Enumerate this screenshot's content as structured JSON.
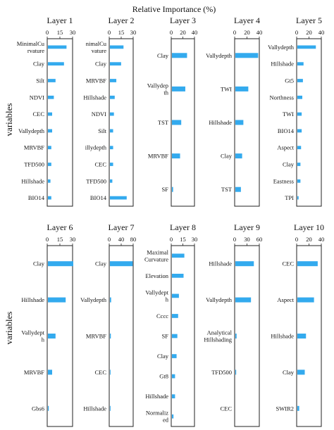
{
  "figure": {
    "title": "Relative Importance (%)",
    "ylabel": "variables"
  },
  "chart_data": [
    {
      "type": "bar",
      "orientation": "horizontal",
      "title": "Layer 1",
      "xlim": [
        0,
        30
      ],
      "xticks": [
        0,
        15,
        30
      ],
      "categories": [
        "MinimalCu rvature",
        "Clay",
        "Silt",
        "NDVI",
        "CEC",
        "Vallydepth",
        "MRVBF",
        "TFD500",
        "Hillshade",
        "BIO14"
      ],
      "values": [
        22,
        19,
        9,
        7,
        5,
        5,
        4,
        4,
        3,
        4
      ]
    },
    {
      "type": "bar",
      "orientation": "horizontal",
      "title": "Layer 2",
      "xlim": [
        0,
        30
      ],
      "xticks": [
        0,
        15,
        30
      ],
      "categories": [
        "nimalCu vature",
        "Clay",
        "MRVBF",
        "Hillshade",
        "NDVI",
        "Silt",
        "illydepth",
        "CEC",
        "TFD500",
        "BIO14"
      ],
      "values": [
        17,
        14,
        8,
        6,
        5,
        4,
        4,
        4,
        3,
        21
      ]
    },
    {
      "type": "bar",
      "orientation": "horizontal",
      "title": "Layer 3",
      "xlim": [
        0,
        40
      ],
      "xticks": [
        0,
        20,
        40
      ],
      "categories": [
        "Clay",
        "Vallydep th",
        "TST",
        "MRVBF",
        "SF"
      ],
      "values": [
        26,
        23,
        16,
        14,
        2
      ]
    },
    {
      "type": "bar",
      "orientation": "horizontal",
      "title": "Layer 4",
      "xlim": [
        0,
        40
      ],
      "xticks": [
        0,
        20,
        40
      ],
      "categories": [
        "Vallydepth",
        "TWI",
        "Hillshade",
        "Clay",
        "TST"
      ],
      "values": [
        37,
        21,
        13,
        11,
        9
      ]
    },
    {
      "type": "bar",
      "orientation": "horizontal",
      "title": "Layer 5",
      "xlim": [
        0,
        40
      ],
      "xticks": [
        0,
        20,
        40
      ],
      "categories": [
        "Vallydepth",
        "Hillshade",
        "Gt5",
        "Northness",
        "TWI",
        "BIO14",
        "Aspect",
        "Clay",
        "Eastness",
        "TPI"
      ],
      "values": [
        30,
        10,
        9,
        8,
        7,
        7,
        6,
        5,
        5,
        2
      ]
    },
    {
      "type": "bar",
      "orientation": "horizontal",
      "title": "Layer 6",
      "xlim": [
        0,
        30
      ],
      "xticks": [
        0,
        15,
        30
      ],
      "categories": [
        "Clay",
        "Hillshade",
        "Vallydept h",
        "MRVBF",
        "Gbs6"
      ],
      "values": [
        30,
        21,
        9,
        5,
        1
      ]
    },
    {
      "type": "bar",
      "orientation": "horizontal",
      "title": "Layer 7",
      "xlim": [
        0,
        80
      ],
      "xticks": [
        0,
        40,
        80
      ],
      "categories": [
        "Clay",
        "Vallydepth",
        "MRVBF",
        "CEC",
        "Hillshade"
      ],
      "values": [
        76,
        4,
        3,
        2,
        2
      ]
    },
    {
      "type": "bar",
      "orientation": "horizontal",
      "title": "Layer 8",
      "xlim": [
        0,
        30
      ],
      "xticks": [
        0,
        15,
        30
      ],
      "categories": [
        "Maximal Curvature",
        "Elevation",
        "Vallydept h",
        "Cccc",
        "SF",
        "Clay",
        "Gt8",
        "Hillshade",
        "Normaliz ed"
      ],
      "values": [
        16,
        15,
        9,
        8,
        7,
        6,
        4,
        4,
        2
      ]
    },
    {
      "type": "bar",
      "orientation": "horizontal",
      "title": "Layer 9",
      "xlim": [
        0,
        60
      ],
      "xticks": [
        0,
        30,
        60
      ],
      "categories": [
        "Hillshade",
        "Vallydepth",
        "Analytical Hillshading",
        "TFD500",
        "CEC"
      ],
      "values": [
        45,
        38,
        3,
        2,
        0
      ]
    },
    {
      "type": "bar",
      "orientation": "horizontal",
      "title": "Layer 10",
      "xlim": [
        0,
        40
      ],
      "xticks": [
        0,
        20,
        40
      ],
      "categories": [
        "CEC",
        "Aspect",
        "Hillshade",
        "Clay",
        "SWIR2"
      ],
      "values": [
        33,
        27,
        14,
        12,
        3
      ]
    }
  ],
  "colors": {
    "bar": "#33aaee",
    "frame": "#222222",
    "text": "#111111"
  }
}
